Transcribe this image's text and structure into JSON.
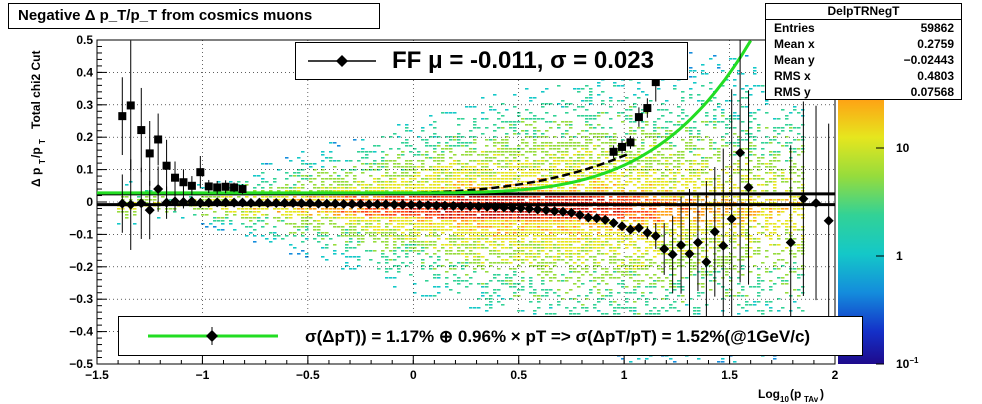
{
  "title": "Negative Δ p_T/p_T from cosmics muons",
  "stats": {
    "name": "DelpTRNegT",
    "rows": [
      {
        "label": "Entries",
        "value": "59862"
      },
      {
        "label": "Mean x",
        "value": "0.2759"
      },
      {
        "label": "Mean y",
        "value": "−0.02443"
      },
      {
        "label": "RMS x",
        "value": "0.4803"
      },
      {
        "label": "RMS y",
        "value": "0.07568"
      }
    ]
  },
  "legend_top": {
    "text": "FF μ = -0.011, σ =   0.023"
  },
  "legend_bottom": {
    "text": "σ(ΔpT)) =  1.17% ⊕  0.96% × pT => σ(ΔpT/pT) =  1.52%(@1GeV/c)"
  },
  "colors": {
    "fit_curve": "#22dd22",
    "markers": "#000000"
  },
  "chart_data": {
    "type": "scatter",
    "xlabel": "Log_10(p_TAv)",
    "ylabel": "Δ p_T/p_T  Total chi2 Cut",
    "xlim": [
      -1.5,
      2.0
    ],
    "ylim": [
      -0.5,
      0.5
    ],
    "x_ticks": [
      "−1.5",
      "−1",
      "−0.5",
      "0",
      "0.5",
      "1",
      "1.5",
      "2"
    ],
    "y_ticks": [
      "−0.5",
      "−0.4",
      "−0.3",
      "−0.2",
      "−0.1",
      "0",
      "0.1",
      "0.2",
      "0.3",
      "0.4",
      "0.5"
    ],
    "colorbar_ticks": [
      "10^-1",
      "1",
      "10"
    ],
    "heatmap": "2D histogram of counts, log color scale",
    "series": [
      {
        "marker": "square",
        "x": [
          -1.38,
          -1.34,
          -1.29,
          -1.25,
          -1.21,
          -1.17,
          -1.13,
          -1.09,
          -1.05,
          -1.01,
          -0.97,
          -0.93,
          -0.89,
          -0.85,
          -0.81,
          0.95,
          0.99,
          1.03,
          1.07,
          1.11,
          1.15
        ],
        "y": [
          0.265,
          0.298,
          0.222,
          0.15,
          0.193,
          0.112,
          0.075,
          0.061,
          0.05,
          0.092,
          0.048,
          0.045,
          0.047,
          0.045,
          0.04,
          0.155,
          0.17,
          0.184,
          0.262,
          0.29,
          0.37
        ],
        "yerr": [
          0.12,
          0.2,
          0.13,
          0.1,
          0.08,
          0.08,
          0.05,
          0.04,
          0.03,
          0.05,
          0.02,
          0.02,
          0.02,
          0.015,
          0.015,
          0.02,
          0.02,
          0.02,
          0.03,
          0.03,
          0.06
        ]
      },
      {
        "marker": "diamond",
        "x": [
          -1.38,
          -1.34,
          -1.29,
          -1.25,
          -1.21,
          -1.17,
          -1.13,
          -1.09,
          -1.05,
          -1.01,
          -0.97,
          -0.93,
          -0.89,
          -0.85,
          -0.81,
          -0.77,
          -0.73,
          -0.69,
          -0.65,
          -0.61,
          -0.57,
          -0.53,
          -0.49,
          -0.45,
          -0.41,
          -0.37,
          -0.33,
          -0.29,
          -0.25,
          -0.21,
          -0.17,
          -0.13,
          -0.09,
          -0.05,
          -0.01,
          0.03,
          0.07,
          0.11,
          0.15,
          0.19,
          0.23,
          0.27,
          0.31,
          0.35,
          0.39,
          0.43,
          0.47,
          0.51,
          0.55,
          0.59,
          0.63,
          0.67,
          0.71,
          0.75,
          0.79,
          0.83,
          0.87,
          0.91,
          0.95,
          0.99,
          1.03,
          1.07,
          1.11,
          1.15,
          1.19,
          1.23,
          1.27,
          1.31,
          1.35,
          1.39,
          1.43,
          1.47,
          1.51,
          1.55,
          1.59,
          1.79,
          1.85,
          1.91,
          1.97
        ],
        "y": [
          -0.005,
          -0.008,
          -0.004,
          -0.025,
          0.04,
          -0.002,
          0.002,
          0.0,
          0.002,
          -0.003,
          -0.002,
          -0.001,
          -0.001,
          -0.002,
          -0.002,
          -0.003,
          -0.002,
          -0.003,
          -0.003,
          -0.003,
          -0.003,
          -0.004,
          -0.004,
          -0.005,
          -0.005,
          -0.005,
          -0.006,
          -0.006,
          -0.006,
          -0.007,
          -0.007,
          -0.007,
          -0.008,
          -0.008,
          -0.009,
          -0.009,
          -0.01,
          -0.011,
          -0.011,
          -0.012,
          -0.013,
          -0.013,
          -0.014,
          -0.015,
          -0.016,
          -0.017,
          -0.018,
          -0.019,
          -0.021,
          -0.023,
          -0.025,
          -0.028,
          -0.03,
          -0.033,
          -0.04,
          -0.048,
          -0.05,
          -0.055,
          -0.065,
          -0.075,
          -0.085,
          -0.08,
          -0.095,
          -0.105,
          -0.145,
          -0.162,
          -0.133,
          -0.16,
          -0.125,
          -0.185,
          -0.092,
          -0.135,
          -0.052,
          0.152,
          0.045,
          -0.125,
          0.01,
          -0.003,
          -0.058
        ],
        "yerr": [
          0.09,
          0.14,
          0.11,
          0.09,
          0.07,
          0.05,
          0.03,
          0.02,
          0.015,
          0.015,
          0.01,
          0.008,
          0.006,
          0.006,
          0.005,
          0.005,
          0.004,
          0.004,
          0.004,
          0.004,
          0.003,
          0.003,
          0.003,
          0.003,
          0.003,
          0.003,
          0.003,
          0.003,
          0.003,
          0.003,
          0.003,
          0.003,
          0.003,
          0.003,
          0.003,
          0.003,
          0.003,
          0.003,
          0.003,
          0.003,
          0.003,
          0.003,
          0.003,
          0.003,
          0.003,
          0.003,
          0.003,
          0.003,
          0.003,
          0.004,
          0.004,
          0.004,
          0.004,
          0.005,
          0.005,
          0.006,
          0.006,
          0.007,
          0.008,
          0.009,
          0.01,
          0.015,
          0.02,
          0.04,
          0.08,
          0.12,
          0.15,
          0.2,
          0.15,
          0.25,
          0.2,
          0.3,
          0.4,
          0.4,
          0.3,
          0.3,
          0.3,
          0.3,
          0.3
        ]
      }
    ],
    "fit_lines": [
      {
        "type": "horizontal",
        "y": 0.025
      },
      {
        "type": "horizontal",
        "y": -0.008
      }
    ]
  }
}
